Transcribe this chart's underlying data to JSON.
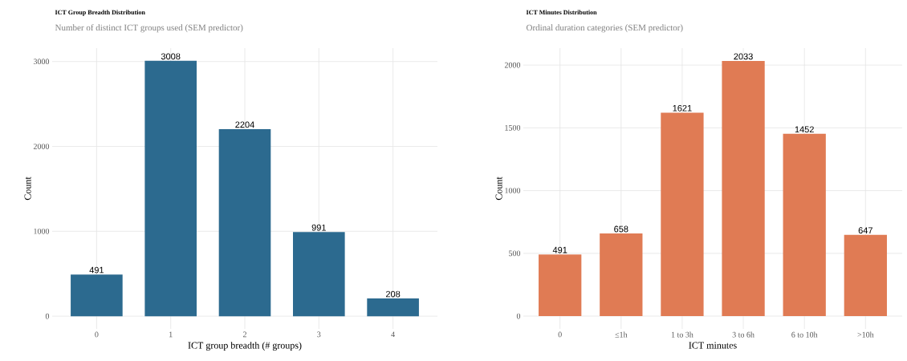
{
  "chart_data": [
    {
      "type": "bar",
      "title": "ICT Group Breadth Distribution",
      "subtitle": "Number of distinct ICT groups used (SEM predictor)",
      "xlabel": "ICT group breadth (# groups)",
      "ylabel": "Count",
      "categories": [
        "0",
        "1",
        "2",
        "3",
        "4"
      ],
      "values": [
        491,
        3008,
        2204,
        991,
        208
      ],
      "color": "#2c6a8f",
      "ylim": [
        -150,
        3158
      ],
      "yticks": [
        0,
        1000,
        2000,
        3000
      ],
      "grid": true,
      "data_labels": true
    },
    {
      "type": "bar",
      "title": "ICT Minutes Distribution",
      "subtitle": "Ordinal duration categories (SEM predictor)",
      "xlabel": "ICT minutes",
      "ylabel": "Count",
      "categories": [
        "0",
        "≤1h",
        "1 to 3h",
        "3 to 6h",
        "6 to 10h",
        ">10h"
      ],
      "values": [
        491,
        658,
        1621,
        2033,
        1452,
        647
      ],
      "color": "#e07b54",
      "ylim": [
        -102,
        2135
      ],
      "yticks": [
        0,
        500,
        1000,
        1500,
        2000
      ],
      "grid": true,
      "data_labels": true
    }
  ]
}
